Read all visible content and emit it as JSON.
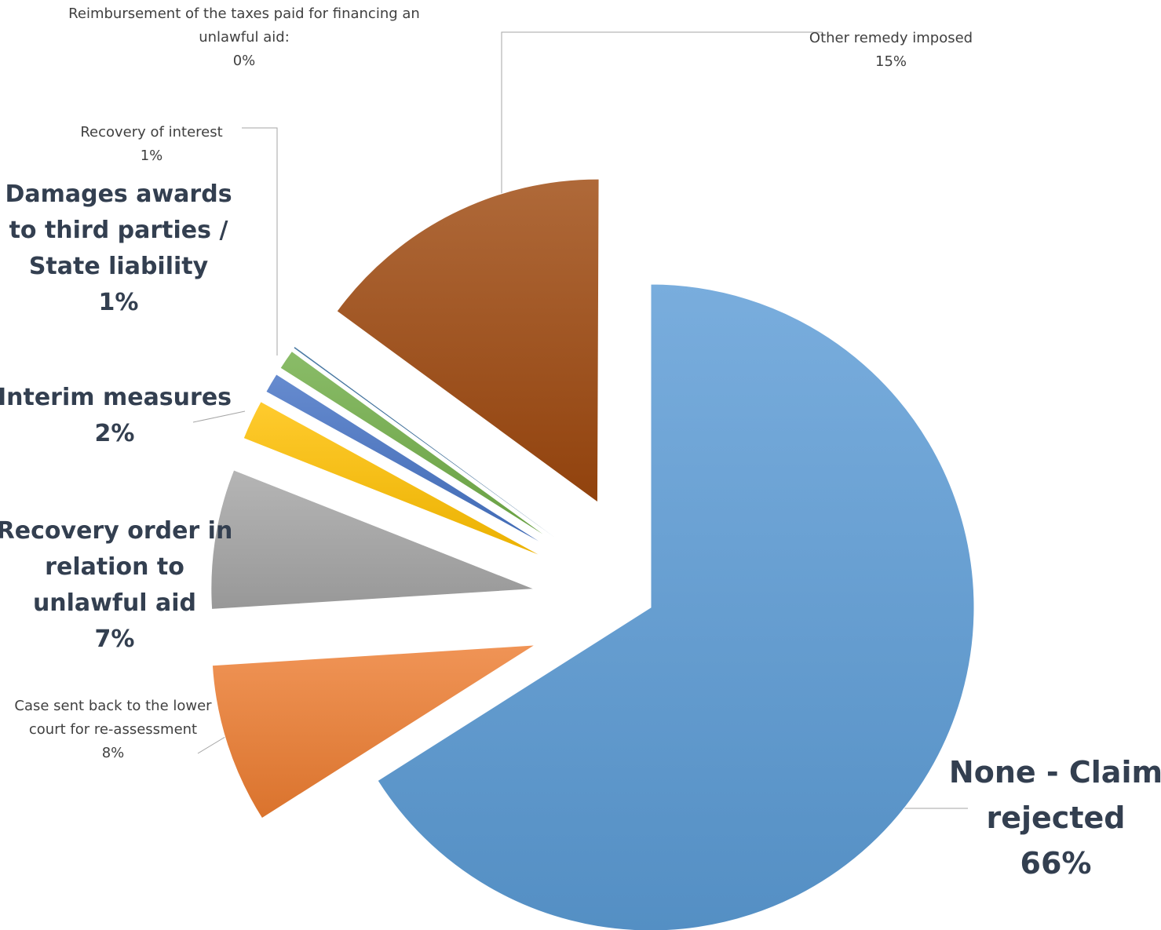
{
  "chart_data": {
    "type": "pie",
    "title": "",
    "slices": [
      {
        "name": "None - Claim rejected",
        "label_lines": [
          "None - Claim",
          "rejected"
        ],
        "value": 66,
        "value_label": "66%",
        "color": "#5b9bd5"
      },
      {
        "name": "Case sent back to the lower court for re-assessment",
        "label_lines": [
          "Case sent back to the lower",
          "court for re-assessment"
        ],
        "value": 8,
        "value_label": "8%",
        "color": "#ed7d31"
      },
      {
        "name": "Recovery order in relation to unlawful aid",
        "label_lines": [
          "Recovery order in",
          "relation to",
          "unlawful aid"
        ],
        "value": 7,
        "value_label": "7%",
        "color": "#a5a5a5"
      },
      {
        "name": "Interim measures",
        "label_lines": [
          "Interim measures"
        ],
        "value": 2,
        "value_label": "2%",
        "color": "#ffc000"
      },
      {
        "name": "Damages awards to third parties / State liability",
        "label_lines": [
          "Damages awards",
          "to third parties /",
          "State liability"
        ],
        "value": 1,
        "value_label": "1%",
        "color": "#4472c4"
      },
      {
        "name": "Recovery of interest",
        "label_lines": [
          "Recovery of interest"
        ],
        "value": 1,
        "value_label": "1%",
        "color": "#70ad47"
      },
      {
        "name": "Reimbursement of the taxes paid for financing an unlawful aid",
        "label_lines": [
          "Reimbursement of the taxes paid for financing an",
          "unlawful aid:"
        ],
        "value": 0,
        "value_label": "0%",
        "color": "#255e91"
      },
      {
        "name": "Other remedy imposed",
        "label_lines": [
          "Other remedy imposed"
        ],
        "value": 15,
        "value_label": "15%",
        "color": "#9e480e"
      }
    ]
  }
}
